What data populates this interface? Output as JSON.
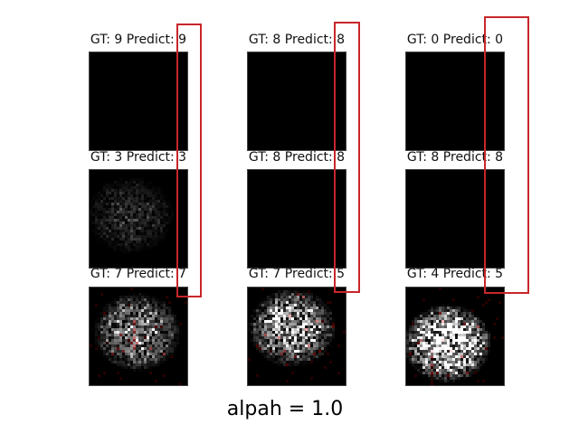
{
  "colors": {
    "background": "#ffffff",
    "tile_background": "#000000",
    "tile_border": "#444444",
    "highlight_box": "#c8262b"
  },
  "grid": {
    "rows": [
      [
        {
          "title": "GT: 9 Predict: 9",
          "activation_level": 0.0,
          "seed": 11
        },
        {
          "title": "GT: 8 Predict: 8",
          "activation_level": 0.0,
          "seed": 12
        },
        {
          "title": "GT: 0 Predict: 0",
          "activation_level": 0.0,
          "seed": 13
        }
      ],
      [
        {
          "title": "GT: 3 Predict: 3",
          "activation_level": 0.12,
          "seed": 21
        },
        {
          "title": "GT: 8 Predict: 8",
          "activation_level": 0.0,
          "seed": 22
        },
        {
          "title": "GT: 8 Predict: 8",
          "activation_level": 0.0,
          "seed": 23
        }
      ],
      [
        {
          "title": "GT: 7 Predict: 7",
          "activation_level": 0.4,
          "seed": 31
        },
        {
          "title": "GT: 7 Predict: 5",
          "activation_level": 0.55,
          "seed": 32
        },
        {
          "title": "GT: 4 Predict: 5",
          "activation_level": 0.85,
          "seed": 33
        }
      ]
    ]
  },
  "caption": "alpah = 1.0"
}
